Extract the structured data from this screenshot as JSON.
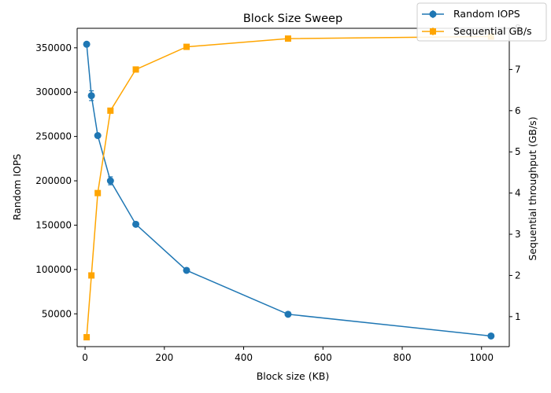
{
  "chart_data": {
    "type": "line",
    "title": "Block Size Sweep",
    "xlabel": "Block size (KB)",
    "ylabel_left": "Random IOPS",
    "ylabel_right": "Sequential throughput (GB/s)",
    "xlim": [
      -20,
      1070
    ],
    "ylim_left": [
      13000,
      372000
    ],
    "ylim_right": [
      0.272,
      8.0
    ],
    "x_ticks": [
      0,
      200,
      400,
      600,
      800,
      1000
    ],
    "x_tick_labels": [
      "0",
      "200",
      "400",
      "600",
      "800",
      "1000"
    ],
    "y_left_ticks": [
      50000,
      100000,
      150000,
      200000,
      250000,
      300000,
      350000
    ],
    "y_left_tick_labels": [
      "50000",
      "100000",
      "150000",
      "200000",
      "250000",
      "300000",
      "350000"
    ],
    "y_right_ticks": [
      1,
      2,
      3,
      4,
      5,
      6,
      7,
      8
    ],
    "y_right_tick_labels": [
      "1",
      "2",
      "3",
      "4",
      "5",
      "6",
      "7",
      "8"
    ],
    "grid": false,
    "legend_position": "top-right",
    "x": [
      4,
      16,
      32,
      64,
      128,
      256,
      512,
      1024
    ],
    "series": [
      {
        "name": "Random IOPS",
        "axis": "left",
        "marker": "circle",
        "color": "#1f77b4",
        "values": [
          354000,
          296000,
          251000,
          200000,
          151000,
          99000,
          49500,
          25000
        ],
        "error": [
          0,
          5500,
          0,
          4500,
          0,
          0,
          0,
          0
        ]
      },
      {
        "name": "Sequential GB/s",
        "axis": "right",
        "marker": "square",
        "color": "#ffa500",
        "values": [
          0.5,
          2.0,
          4.0,
          6.0,
          7.0,
          7.55,
          7.75,
          7.8
        ],
        "error": [
          0,
          0,
          0,
          0,
          0,
          0,
          0,
          0
        ]
      }
    ]
  }
}
